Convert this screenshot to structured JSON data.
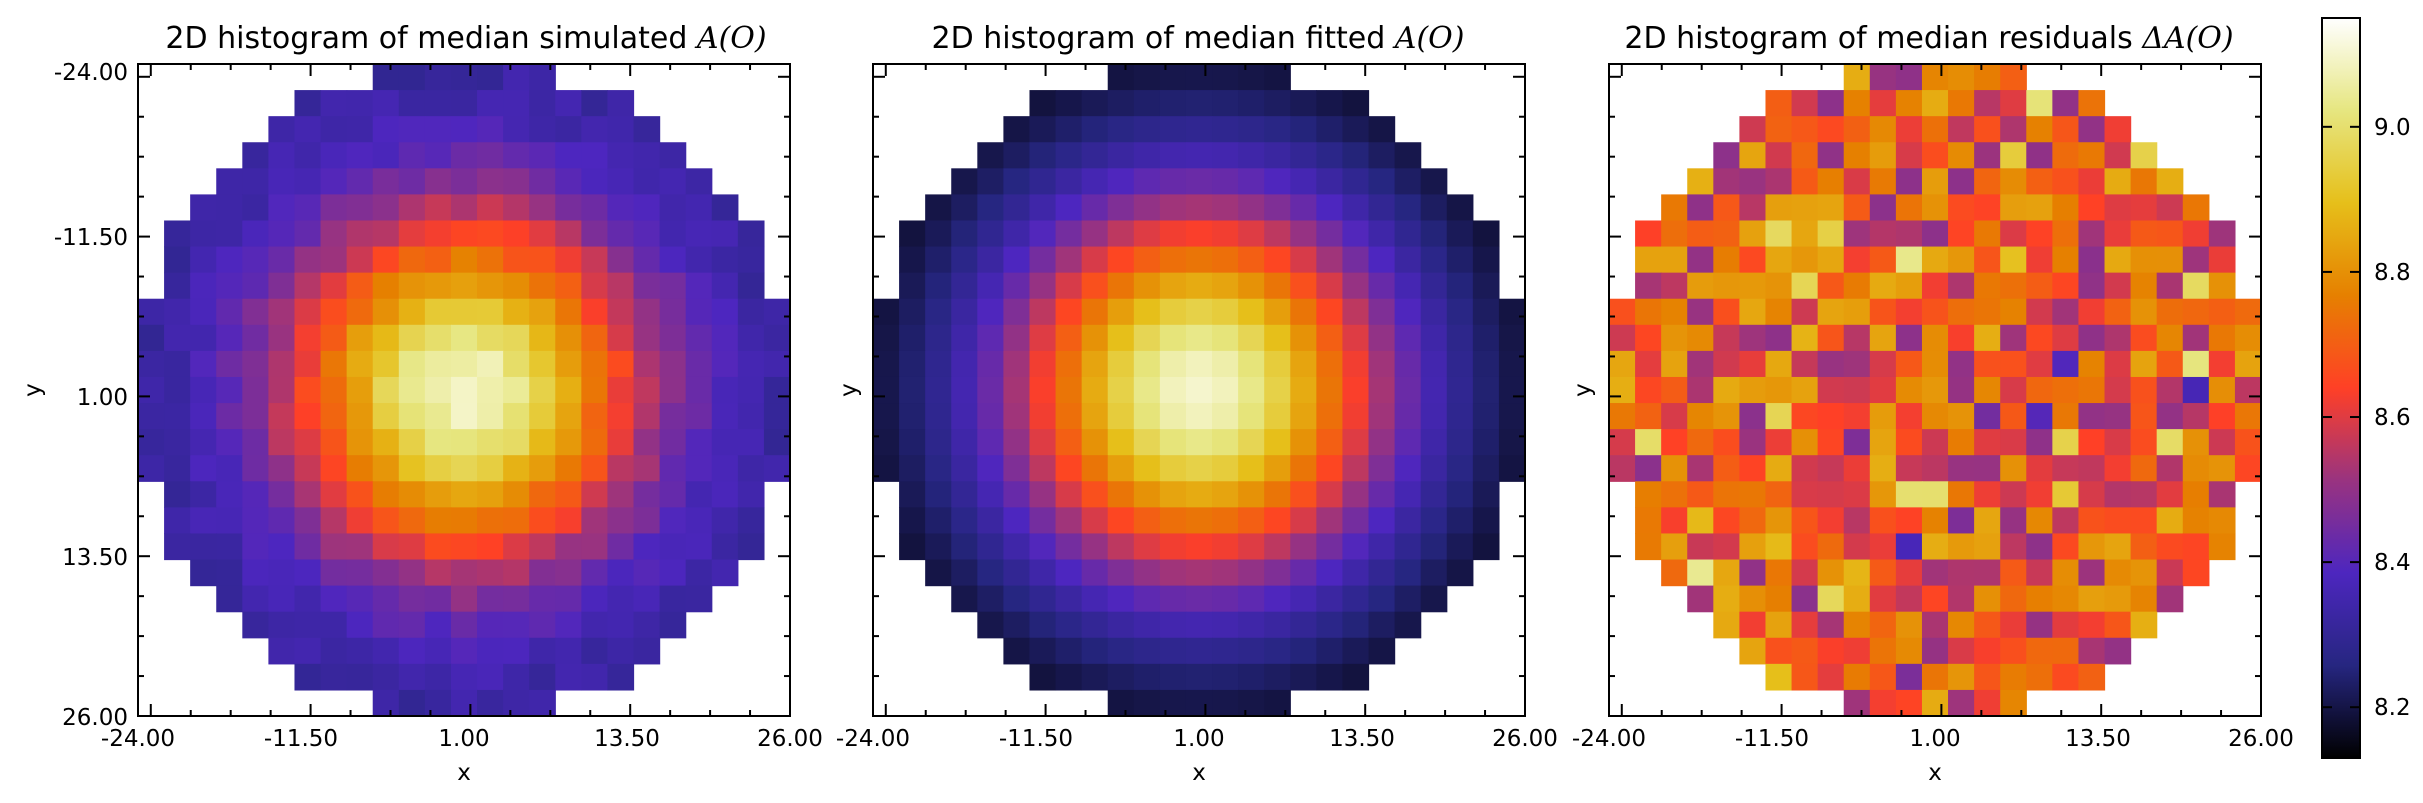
{
  "chart_data": [
    {
      "type": "heatmap",
      "title": "2D histogram of median simulated",
      "title_math": "A(O)",
      "xlabel": "x",
      "ylabel": "y",
      "x_ticks": [
        "-24.00",
        "-11.50",
        "1.00",
        "13.50",
        "26.00"
      ],
      "y_ticks": [
        "-24.00",
        "-11.50",
        "1.00",
        "13.50",
        "26.00"
      ],
      "show_y_tick_labels": true,
      "xlim": [
        -25,
        26
      ],
      "ylim": [
        26,
        -25
      ],
      "grid": false,
      "colormap": "CMRmap",
      "bin_grid": [
        25,
        25
      ],
      "field": "simulated",
      "peak": [
        0,
        0
      ],
      "peak_value": 9.1,
      "support_radius": 12.6
    },
    {
      "type": "heatmap",
      "title": "2D histogram of median fitted",
      "title_math": "A(O)",
      "xlabel": "x",
      "ylabel": "y",
      "x_ticks": [
        "-24.00",
        "-11.50",
        "1.00",
        "13.50",
        "26.00"
      ],
      "y_ticks": [
        "-24.00",
        "-11.50",
        "1.00",
        "13.50",
        "26.00"
      ],
      "show_y_tick_labels": false,
      "xlim": [
        -25,
        26
      ],
      "ylim": [
        26,
        -25
      ],
      "grid": false,
      "colormap": "CMRmap",
      "bin_grid": [
        25,
        25
      ],
      "field": "fitted",
      "peak": [
        0,
        0
      ],
      "peak_value": 9.1,
      "support_radius": 12.6
    },
    {
      "type": "heatmap",
      "title": "2D histogram of median residuals",
      "title_math": "ΔA(O)",
      "xlabel": "x",
      "ylabel": "y",
      "x_ticks": [
        "-24.00",
        "-11.50",
        "1.00",
        "13.50",
        "26.00"
      ],
      "y_ticks": [
        "-24.00",
        "-11.50",
        "1.00",
        "13.50",
        "26.00"
      ],
      "show_y_tick_labels": false,
      "xlim": [
        -25,
        26
      ],
      "ylim": [
        26,
        -25
      ],
      "grid": false,
      "colormap": "CMRmap",
      "bin_grid": [
        25,
        25
      ],
      "field": "residuals",
      "value_range": [
        8.3,
        9.05
      ],
      "support_radius": 12.6
    }
  ],
  "colorbar": {
    "min": 8.13,
    "max": 9.15,
    "ticks": [
      "8.2",
      "8.4",
      "8.6",
      "8.8",
      "9.0"
    ],
    "tick_values": [
      8.2,
      8.4,
      8.6,
      8.8,
      9.0
    ]
  }
}
